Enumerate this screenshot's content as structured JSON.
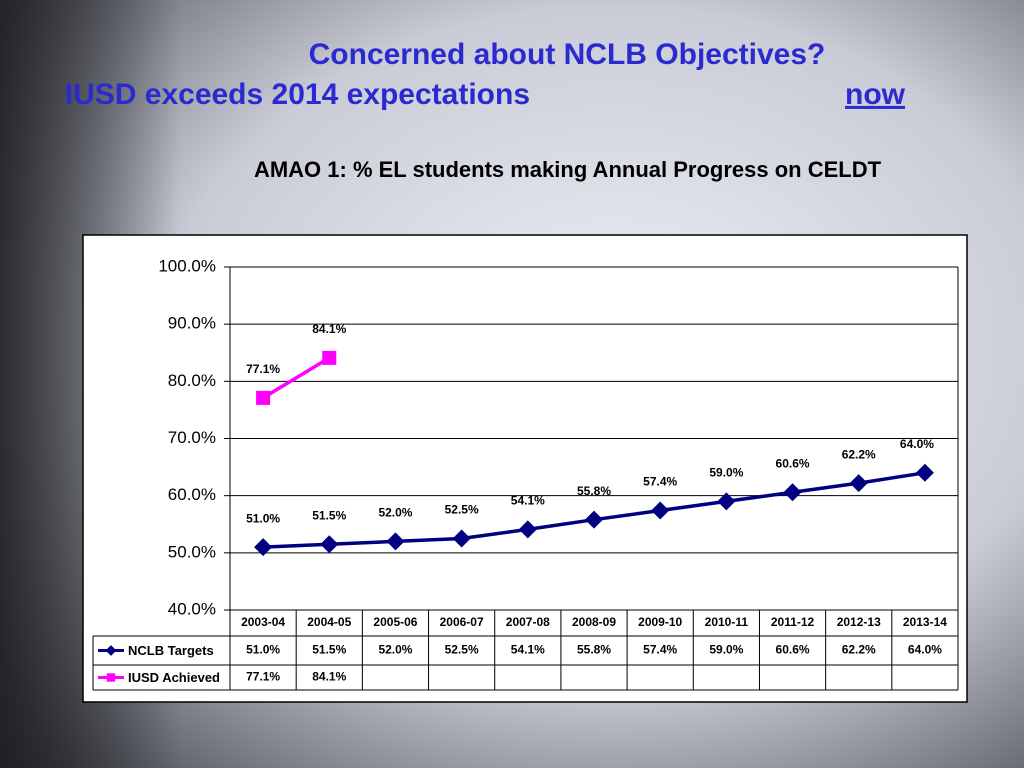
{
  "header": {
    "title_line1": "Concerned about NCLB Objectives?",
    "title_line2": "IUSD exceeds 2014 expectations",
    "title_emphasis": "now"
  },
  "chart_data": {
    "type": "line",
    "title": "AMAO 1: % EL students making Annual Progress on CELDT",
    "categories": [
      "2003-04",
      "2004-05",
      "2005-06",
      "2006-07",
      "2007-08",
      "2008-09",
      "2009-10",
      "2010-11",
      "2011-12",
      "2012-13",
      "2013-14"
    ],
    "series": [
      {
        "name": "NCLB Targets",
        "color": "#000080",
        "marker": "diamond",
        "values": [
          51.0,
          51.5,
          52.0,
          52.5,
          54.1,
          55.8,
          57.4,
          59.0,
          60.6,
          62.2,
          64.0
        ],
        "value_labels": [
          "51.0%",
          "51.5%",
          "52.0%",
          "52.5%",
          "54.1%",
          "55.8%",
          "57.4%",
          "59.0%",
          "60.6%",
          "62.2%",
          "64.0%"
        ]
      },
      {
        "name": "IUSD Achieved",
        "color": "#ff00ff",
        "marker": "square",
        "values": [
          77.1,
          84.1,
          null,
          null,
          null,
          null,
          null,
          null,
          null,
          null,
          null
        ],
        "value_labels": [
          "77.1%",
          "84.1%",
          null,
          null,
          null,
          null,
          null,
          null,
          null,
          null,
          null
        ]
      }
    ],
    "ylim": [
      40,
      100
    ],
    "yticks": [
      {
        "value": 40,
        "label": "40.0%"
      },
      {
        "value": 50,
        "label": "50.0%"
      },
      {
        "value": 60,
        "label": "60.0%"
      },
      {
        "value": 70,
        "label": "70.0%"
      },
      {
        "value": 80,
        "label": "80.0%"
      },
      {
        "value": 90,
        "label": "90.0%"
      },
      {
        "value": 100,
        "label": "100.0%"
      }
    ],
    "grid": true,
    "data_table": true
  }
}
